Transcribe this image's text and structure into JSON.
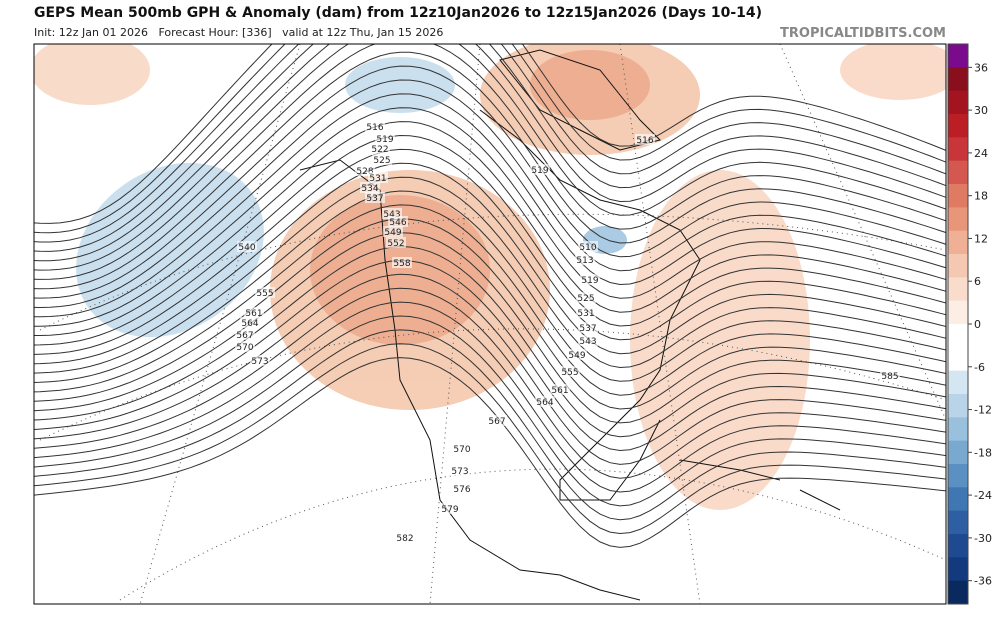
{
  "header": {
    "title": "GEPS Mean 500mb GPH & Anomaly (dam) from 12z10Jan2026 to 12z15Jan2026 (Days 10-14)",
    "subtitle": "Init: 12z Jan 01 2026   Forecast Hour: [336]   valid at 12z Thu, Jan 15 2026",
    "source": "TROPICALTIDBITS.COM"
  },
  "colorbar": {
    "ticks": [
      36,
      30,
      24,
      18,
      12,
      6,
      0,
      -6,
      -12,
      -18,
      -24,
      -30,
      -36
    ],
    "colors": [
      "#7a0b8c",
      "#8a0f1c",
      "#a31420",
      "#bb1e25",
      "#c9363a",
      "#d4584f",
      "#df7a63",
      "#e89679",
      "#efb095",
      "#f5c8b2",
      "#f9dccc",
      "#fdeee5",
      "#ffffff",
      "#ffffff",
      "#d4e6f1",
      "#b9d4e8",
      "#99c0dd",
      "#7aa9d0",
      "#5b91c2",
      "#3f77b3",
      "#2d5fa2",
      "#1d4a90",
      "#123a7c",
      "#0a2a5f"
    ]
  },
  "contour_labels": [
    516,
    519,
    522,
    525,
    528,
    531,
    534,
    537,
    540,
    543,
    546,
    549,
    552,
    555,
    558,
    561,
    564,
    567,
    570,
    573,
    516,
    519,
    510,
    513,
    519,
    525,
    531,
    537,
    543,
    549,
    555,
    561,
    564,
    567,
    570,
    573,
    576,
    579,
    582,
    585
  ]
}
